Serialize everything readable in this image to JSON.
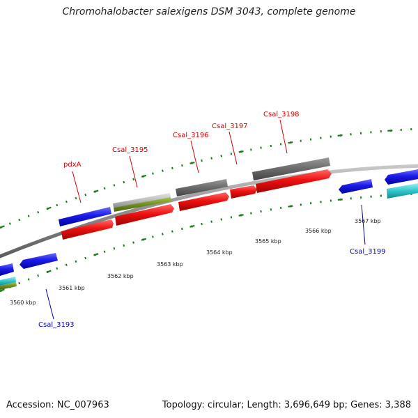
{
  "title": "Chromohalobacter salexigens DSM 3043, complete genome",
  "footer": {
    "accession": "Accession: NC_007963",
    "summary": "Topology: circular; Length: 3,696,649 bp; Genes: 3,388"
  },
  "scale_labels": [
    "3560 kbp",
    "3561 kbp",
    "3562 kbp",
    "3563 kbp",
    "3564 kbp",
    "3565 kbp",
    "3566 kbp",
    "3567 kbp"
  ],
  "gene_labels": {
    "forward": [
      "pdxA",
      "Csal_3195",
      "Csal_3196",
      "Csal_3197",
      "Csal_3198"
    ],
    "reverse": [
      "Csal_3193",
      "Csal_3199"
    ]
  },
  "colors": {
    "backbone": "#8c8c8c",
    "forward_cds": "#ee1111",
    "reverse_cds": "#1a1ae6",
    "gene_gray": "#6e6e6e",
    "gene_light_gray": "#bdbdbd",
    "olive": "#6f8f22",
    "cyan": "#2fc6cc",
    "ticks": "#1f7a1f",
    "forward_label": "#d40000",
    "reverse_label": "#0000b8"
  }
}
